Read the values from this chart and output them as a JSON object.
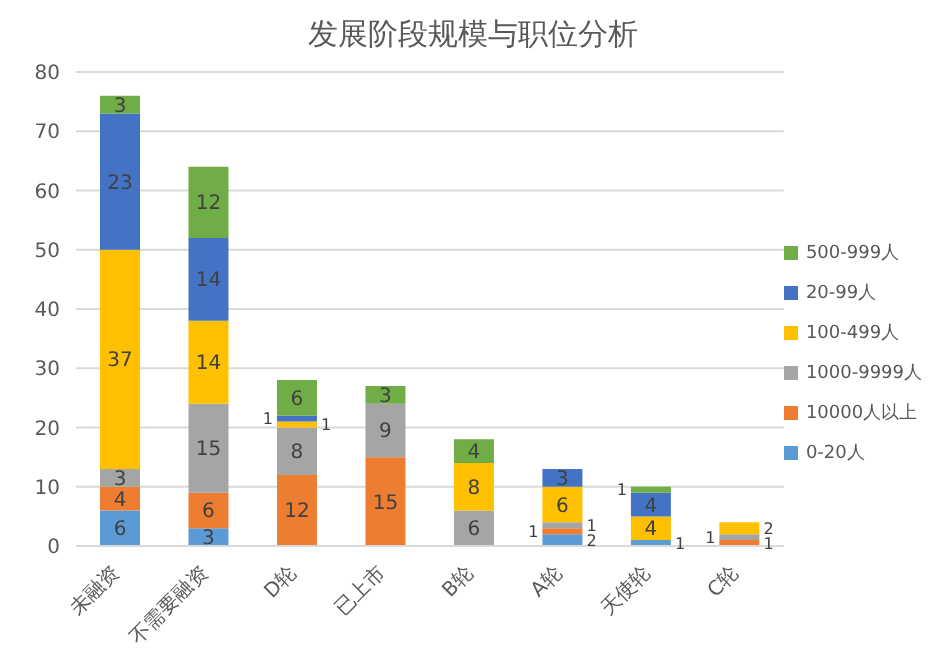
{
  "chart_data": {
    "type": "bar",
    "title": "发展阶段规模与职位分析",
    "stacked": true,
    "categories": [
      "未融资",
      "不需要融资",
      "D轮",
      "已上市",
      "B轮",
      "A轮",
      "天使轮",
      "C轮"
    ],
    "series": [
      {
        "name": "0-20人",
        "color": "#5b9bd5",
        "values": [
          6,
          3,
          null,
          null,
          null,
          2,
          1,
          null
        ]
      },
      {
        "name": "10000人以上",
        "color": "#ed7d31",
        "values": [
          4,
          6,
          12,
          15,
          null,
          1,
          null,
          1
        ]
      },
      {
        "name": "1000-9999人",
        "color": "#a5a5a5",
        "values": [
          3,
          15,
          8,
          9,
          6,
          1,
          null,
          1
        ]
      },
      {
        "name": "100-499人",
        "color": "#ffc000",
        "values": [
          37,
          14,
          1,
          null,
          8,
          6,
          4,
          2
        ]
      },
      {
        "name": "20-99人",
        "color": "#4472c4",
        "values": [
          23,
          14,
          1,
          null,
          null,
          3,
          4,
          null
        ]
      },
      {
        "name": "500-999人",
        "color": "#70ad47",
        "values": [
          3,
          12,
          6,
          3,
          4,
          null,
          1,
          null
        ]
      }
    ],
    "ylim": [
      0,
      80
    ],
    "yticks": [
      0,
      10,
      20,
      30,
      40,
      50,
      60,
      70,
      80
    ],
    "grid": "y",
    "legend": "right",
    "data_labels": true
  }
}
